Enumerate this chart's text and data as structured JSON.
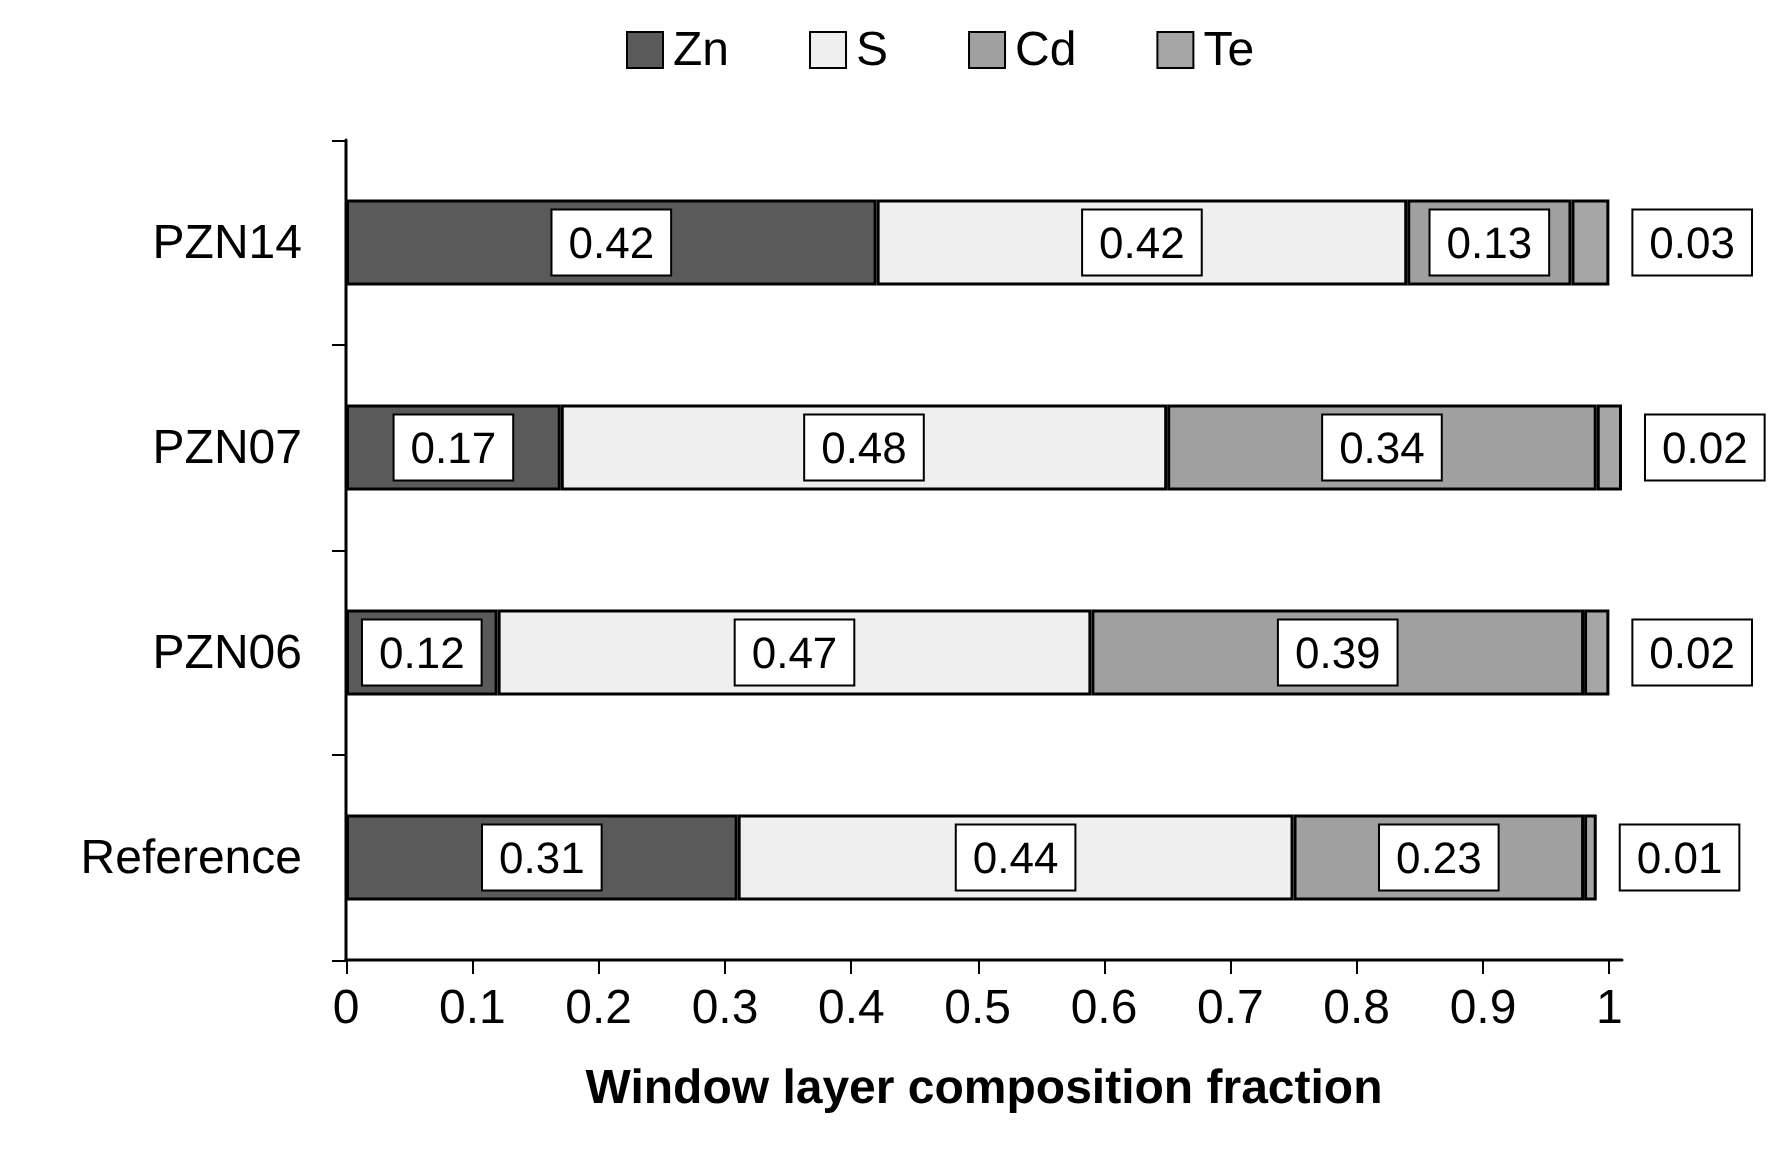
{
  "chart_data": {
    "type": "bar",
    "orientation": "horizontal",
    "stacked": true,
    "xlabel": "Window layer composition fraction",
    "categories": [
      "PZN14",
      "PZN07",
      "PZN06",
      "Reference"
    ],
    "series": [
      {
        "name": "Zn",
        "color": "#5a5a5a",
        "values": [
          0.42,
          0.17,
          0.12,
          0.31
        ]
      },
      {
        "name": "S",
        "color": "#efefef",
        "values": [
          0.42,
          0.48,
          0.47,
          0.44
        ]
      },
      {
        "name": "Cd",
        "color": "#a0a0a0",
        "values": [
          0.13,
          0.34,
          0.39,
          0.23
        ]
      },
      {
        "name": "Te",
        "color": "#a6a6a6",
        "values": [
          0.03,
          0.02,
          0.02,
          0.01
        ]
      }
    ],
    "xlim": [
      0,
      1.01
    ],
    "xticks": [
      0,
      0.1,
      0.2,
      0.3,
      0.4,
      0.5,
      0.6,
      0.7,
      0.8,
      0.9,
      1
    ],
    "data_labels": true,
    "legend": "top",
    "grid": false
  }
}
